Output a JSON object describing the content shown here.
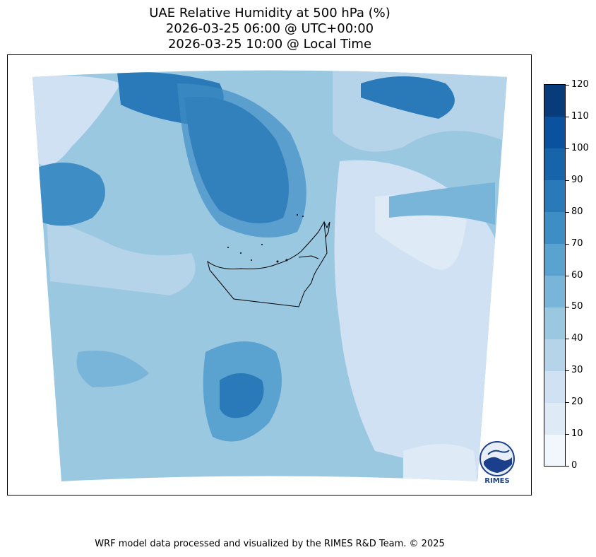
{
  "title": {
    "line1": "UAE Relative Humidity at 500 hPa (%)",
    "line2": "2026-03-25 06:00 @ UTC+00:00",
    "line3": "2026-03-25 10:00 @ Local Time"
  },
  "colorbar": {
    "ticks": [
      "0",
      "10",
      "20",
      "30",
      "40",
      "50",
      "60",
      "70",
      "80",
      "90",
      "100",
      "110",
      "120"
    ],
    "colors": [
      "#f1f7fd",
      "#deebf7",
      "#cfe1f2",
      "#b6d4e9",
      "#9ac8e0",
      "#79b5d9",
      "#5aa2cf",
      "#3e8dc4",
      "#2a79b8",
      "#1764ab",
      "#0a519f",
      "#083b7a"
    ]
  },
  "map": {
    "region": "UAE",
    "variable": "Relative Humidity",
    "level": "500 hPa",
    "units": "%"
  },
  "logo": {
    "text": "RIMES",
    "icon": "rimes-globe-logo"
  },
  "footer": {
    "text": "WRF model data processed and visualized by the RIMES R&D Team. © 2025"
  }
}
